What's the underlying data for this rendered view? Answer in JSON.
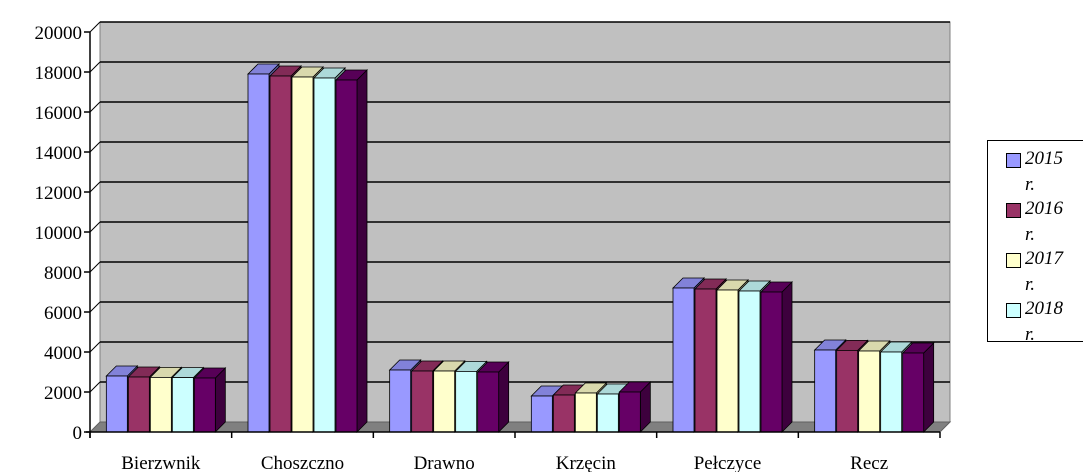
{
  "chart_data": {
    "type": "bar",
    "categories": [
      "Bierzwnik",
      "Choszczno",
      "Drawno",
      "Krzęcin",
      "Pełczyce",
      "Recz"
    ],
    "series": [
      {
        "name": "2015 r.",
        "color": "#9999FF",
        "values": [
          2800,
          17900,
          3100,
          1800,
          7200,
          4100
        ]
      },
      {
        "name": "2016 r.",
        "color": "#993366",
        "values": [
          2750,
          17800,
          3050,
          1850,
          7150,
          4080
        ]
      },
      {
        "name": "2017 r.",
        "color": "#FFFFCC",
        "values": [
          2730,
          17750,
          3050,
          1950,
          7100,
          4050
        ]
      },
      {
        "name": "2018 r.",
        "color": "#CCFFFF",
        "values": [
          2720,
          17700,
          3030,
          1900,
          7050,
          4000
        ]
      },
      {
        "name": "",
        "color": "#660066",
        "values": [
          2700,
          17600,
          3000,
          2000,
          7000,
          3950
        ]
      }
    ],
    "yticks": [
      "0",
      "2000",
      "4000",
      "6000",
      "8000",
      "10000",
      "12000",
      "14000",
      "16000",
      "18000",
      "20000"
    ],
    "ylim": [
      0,
      20000
    ],
    "grid": true,
    "legend_placement": "right",
    "title": "",
    "xlabel": "",
    "ylabel": ""
  }
}
